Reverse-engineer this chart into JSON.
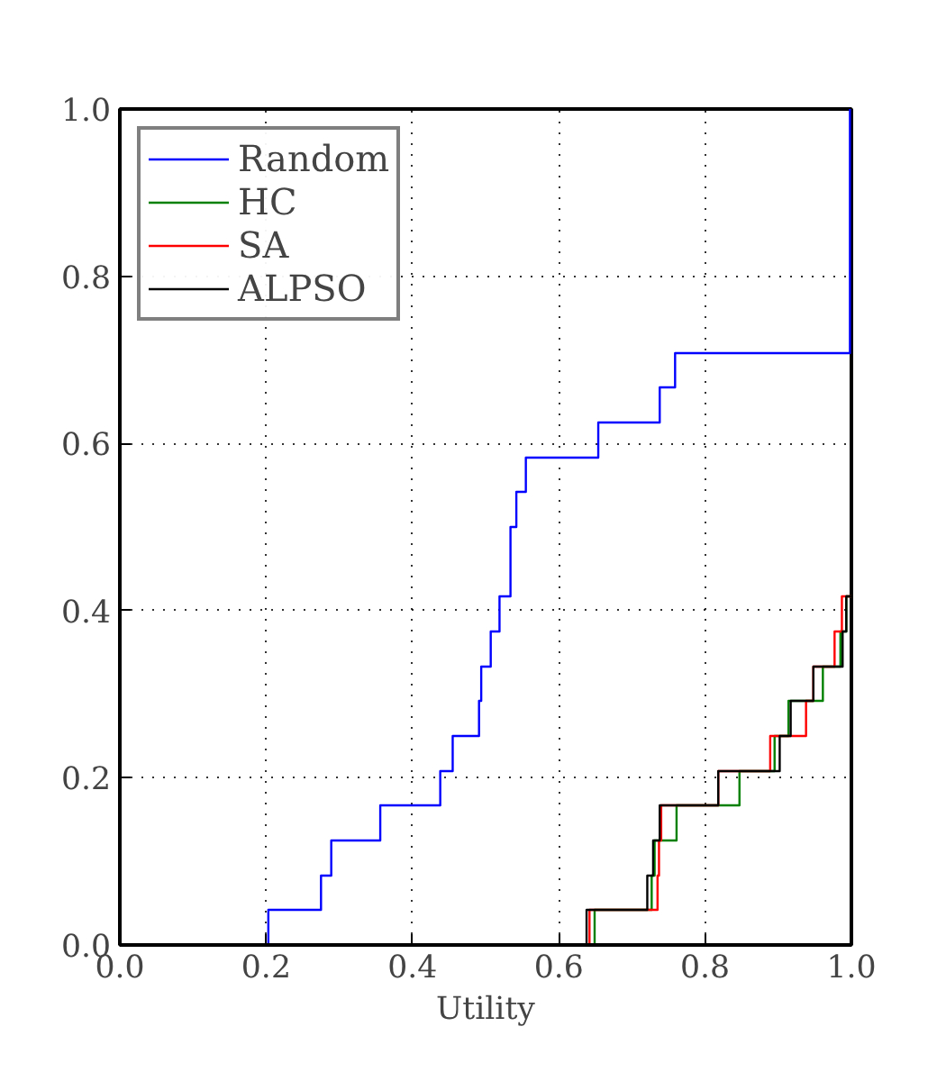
{
  "chart_data": {
    "type": "step",
    "xlabel": "Utility",
    "xlim": [
      0.0,
      1.0
    ],
    "ylim": [
      0.0,
      1.0
    ],
    "xticks": [
      {
        "value": 0,
        "label": "0.0"
      },
      {
        "value": 0.2,
        "label": "0.2"
      },
      {
        "value": 0.4,
        "label": "0.4"
      },
      {
        "value": 0.6,
        "label": "0.6"
      },
      {
        "value": 0.8,
        "label": "0.8"
      },
      {
        "value": 1,
        "label": "1.0"
      }
    ],
    "yticks": [
      {
        "value": 0,
        "label": "0.0"
      },
      {
        "value": 0.2,
        "label": "0.2"
      },
      {
        "value": 0.4,
        "label": "0.4"
      },
      {
        "value": 0.6,
        "label": "0.6"
      },
      {
        "value": 0.8,
        "label": "0.8"
      },
      {
        "value": 1,
        "label": "1.0"
      }
    ],
    "grid": true,
    "legend": "top left",
    "line_style": "solid",
    "marker": "none",
    "series": [
      {
        "name": "Random",
        "color": "#0000ff",
        "x": [
          0.2,
          0.203,
          0.275,
          0.289,
          0.356,
          0.438,
          0.455,
          0.491,
          0.494,
          0.507,
          0.519,
          0.534,
          0.542,
          0.555,
          0.654,
          0.738,
          0.759,
          0.998
        ],
        "values": [
          0,
          0.042,
          0.083,
          0.125,
          0.167,
          0.208,
          0.25,
          0.292,
          0.333,
          0.375,
          0.417,
          0.5,
          0.542,
          0.583,
          0.625,
          0.667,
          0.708,
          1.0
        ]
      },
      {
        "name": "HC",
        "color": "#008000",
        "x": [
          0.649,
          0.649,
          0.727,
          0.731,
          0.761,
          0.847,
          0.895,
          0.914,
          0.961,
          0.985,
          0.993,
          1.0
        ],
        "values": [
          0,
          0.042,
          0.083,
          0.125,
          0.167,
          0.208,
          0.25,
          0.292,
          0.333,
          0.375,
          0.417,
          0.417
        ]
      },
      {
        "name": "SA",
        "color": "#ff0000",
        "x": [
          0.642,
          0.642,
          0.735,
          0.737,
          0.74,
          0.818,
          0.889,
          0.938,
          0.948,
          0.977,
          0.987,
          1.0
        ],
        "values": [
          0,
          0.042,
          0.083,
          0.125,
          0.167,
          0.208,
          0.25,
          0.292,
          0.333,
          0.375,
          0.417,
          0.417
        ]
      },
      {
        "name": "ALPSO",
        "color": "#000000",
        "x": [
          0.638,
          0.638,
          0.721,
          0.729,
          0.738,
          0.818,
          0.902,
          0.917,
          0.948,
          0.988,
          0.993,
          1.0
        ],
        "values": [
          0,
          0.042,
          0.083,
          0.125,
          0.167,
          0.208,
          0.25,
          0.292,
          0.333,
          0.375,
          0.417,
          0.417
        ]
      }
    ]
  }
}
